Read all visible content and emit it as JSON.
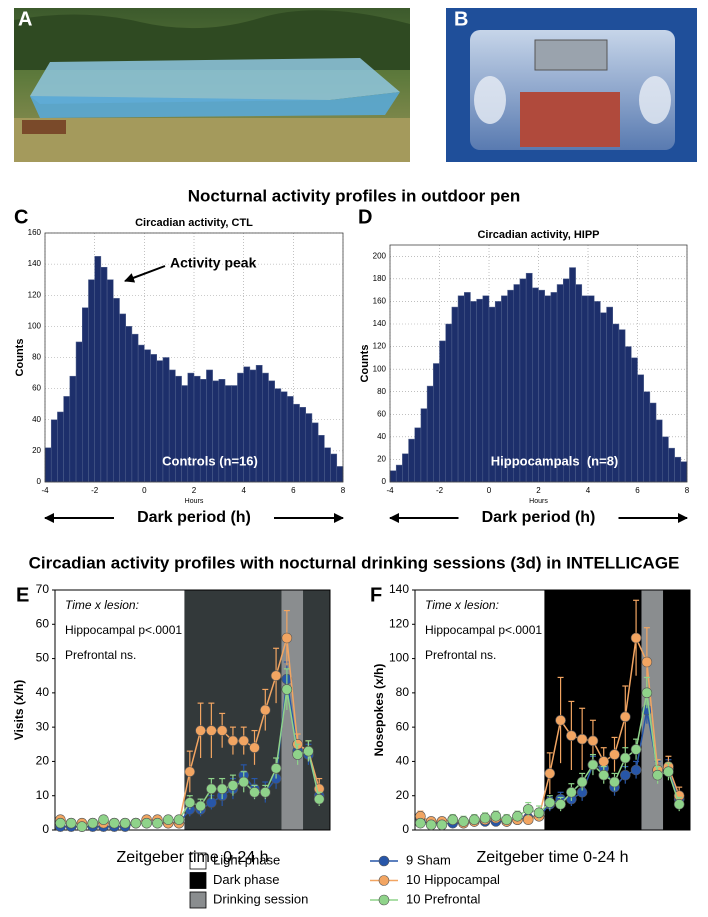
{
  "panel_labels": [
    "A",
    "B",
    "C",
    "D",
    "E",
    "F"
  ],
  "section_titles": [
    "Nocturnal activity profiles in outdoor pen",
    "Circadian activity profiles with nocturnal drinking sessions (3d) in INTELLICAGE"
  ],
  "phase_legend": [
    {
      "label": "Light phase",
      "color": "#ffffff"
    },
    {
      "label": "Dark phase",
      "color": "#000000"
    },
    {
      "label": "Drinking session",
      "color": "#8a8d8f"
    }
  ],
  "chart_data": [
    {
      "type": "histogram",
      "title": "Circadian activity, CTL",
      "x_label": "Hours",
      "y_label": "Counts",
      "x_caption": "Dark period (h)",
      "annotations": [
        "Activity peak",
        "Controls (n=16)"
      ],
      "color": "#1d2f6b",
      "grid": true,
      "xlim": [
        -4,
        8
      ],
      "xticks": [
        -4,
        -2,
        0,
        2,
        4,
        6,
        8
      ],
      "ylim": [
        0,
        160
      ],
      "yticks": [
        0,
        20,
        40,
        60,
        80,
        100,
        120,
        140,
        160
      ],
      "bins": [
        -4,
        -3.75,
        -3.5,
        -3.25,
        -3,
        -2.75,
        -2.5,
        -2.25,
        -2,
        -1.75,
        -1.5,
        -1.25,
        -1,
        -0.75,
        -0.5,
        -0.25,
        0,
        0.25,
        0.5,
        0.75,
        1,
        1.25,
        1.5,
        1.75,
        2,
        2.25,
        2.5,
        2.75,
        3,
        3.25,
        3.5,
        3.75,
        4,
        4.25,
        4.5,
        4.75,
        5,
        5.25,
        5.5,
        5.75,
        6,
        6.25,
        6.5,
        6.75,
        7,
        7.25,
        7.5,
        7.75,
        8
      ],
      "values": [
        22,
        40,
        45,
        55,
        68,
        90,
        112,
        130,
        145,
        138,
        130,
        118,
        108,
        100,
        95,
        88,
        85,
        82,
        78,
        80,
        72,
        68,
        62,
        70,
        68,
        66,
        72,
        65,
        66,
        62,
        62,
        70,
        74,
        72,
        75,
        70,
        65,
        60,
        58,
        55,
        50,
        48,
        44,
        38,
        30,
        22,
        18,
        10
      ]
    },
    {
      "type": "histogram",
      "title": "Circadian activity, HIPP",
      "x_label": "Hours",
      "y_label": "Counts",
      "x_caption": "Dark period (h)",
      "annotations": [
        "Hippocampals  (n=8)"
      ],
      "color": "#1d2f6b",
      "grid": true,
      "xlim": [
        -4,
        8
      ],
      "xticks": [
        -4,
        -2,
        0,
        2,
        4,
        6,
        8
      ],
      "ylim": [
        0,
        210
      ],
      "yticks": [
        0,
        20,
        40,
        60,
        80,
        100,
        120,
        140,
        160,
        180,
        200
      ],
      "bins": [
        -4,
        -3.75,
        -3.5,
        -3.25,
        -3,
        -2.75,
        -2.5,
        -2.25,
        -2,
        -1.75,
        -1.5,
        -1.25,
        -1,
        -0.75,
        -0.5,
        -0.25,
        0,
        0.25,
        0.5,
        0.75,
        1,
        1.25,
        1.5,
        1.75,
        2,
        2.25,
        2.5,
        2.75,
        3,
        3.25,
        3.5,
        3.75,
        4,
        4.25,
        4.5,
        4.75,
        5,
        5.25,
        5.5,
        5.75,
        6,
        6.25,
        6.5,
        6.75,
        7,
        7.25,
        7.5,
        7.75,
        8
      ],
      "values": [
        10,
        15,
        25,
        38,
        48,
        65,
        85,
        105,
        125,
        140,
        155,
        165,
        168,
        160,
        162,
        165,
        155,
        160,
        165,
        170,
        175,
        180,
        185,
        172,
        170,
        165,
        168,
        175,
        180,
        190,
        175,
        165,
        165,
        160,
        150,
        155,
        140,
        135,
        120,
        110,
        95,
        80,
        70,
        55,
        40,
        30,
        22,
        18
      ]
    },
    {
      "type": "line",
      "y_label": "Visits (x/h)",
      "x_label": "Zeitgeber time 0-24 h",
      "annotations": [
        "Time x lesion:",
        "Hippocampal p<.0001",
        "Prefrontal ns."
      ],
      "x": [
        0,
        1,
        2,
        3,
        4,
        5,
        6,
        7,
        8,
        9,
        10,
        11,
        12,
        13,
        14,
        15,
        16,
        17,
        18,
        19,
        20,
        21,
        22,
        23,
        24
      ],
      "xlim": [
        -0.5,
        25
      ],
      "ylim": [
        0,
        70
      ],
      "yticks": [
        0,
        10,
        20,
        30,
        40,
        50,
        60,
        70
      ],
      "regions": [
        {
          "start": 11.5,
          "end": 25,
          "color": "#33393a"
        },
        {
          "start": 20.5,
          "end": 22.5,
          "color": "#8a8d8f"
        }
      ],
      "series": [
        {
          "name": "9 Sham",
          "color": "#2756a8",
          "values": [
            1,
            1,
            1,
            1,
            1,
            1,
            1,
            2,
            2,
            2,
            2,
            2,
            6,
            6,
            8,
            10,
            12,
            16,
            12,
            11,
            15,
            44,
            23,
            22,
            10
          ],
          "errors": [
            1,
            1,
            1,
            1,
            1,
            1,
            1,
            1,
            1,
            1,
            1,
            1,
            2,
            2,
            2,
            3,
            3,
            3,
            3,
            3,
            3,
            5,
            3,
            3,
            2
          ]
        },
        {
          "name": "10 Hippocampal",
          "color": "#f2a562",
          "values": [
            3,
            2,
            2,
            2,
            2,
            2,
            2,
            2,
            3,
            3,
            2,
            2,
            17,
            29,
            29,
            29,
            26,
            26,
            24,
            35,
            45,
            56,
            25,
            23,
            12
          ],
          "errors": [
            1,
            1,
            1,
            1,
            1,
            1,
            1,
            1,
            1,
            1,
            1,
            1,
            6,
            8,
            8,
            5,
            4,
            4,
            5,
            6,
            8,
            8,
            3,
            3,
            3
          ]
        },
        {
          "name": "10 Prefrontal",
          "color": "#8fd38a",
          "values": [
            2,
            2,
            1,
            2,
            3,
            2,
            2,
            2,
            2,
            2,
            3,
            3,
            8,
            7,
            12,
            12,
            13,
            14,
            11,
            11,
            18,
            41,
            22,
            23,
            9
          ],
          "errors": [
            1,
            1,
            1,
            1,
            1,
            1,
            1,
            1,
            1,
            1,
            1,
            1,
            2,
            2,
            3,
            3,
            3,
            3,
            2,
            2,
            3,
            6,
            3,
            3,
            2
          ]
        }
      ]
    },
    {
      "type": "line",
      "y_label": "Nosepokes (x/h)",
      "x_label": "Zeitgeber time 0-24 h",
      "annotations": [
        "Time x lesion:",
        "Hippocampal p<.0001",
        "Prefrontal ns."
      ],
      "x": [
        0,
        1,
        2,
        3,
        4,
        5,
        6,
        7,
        8,
        9,
        10,
        11,
        12,
        13,
        14,
        15,
        16,
        17,
        18,
        19,
        20,
        21,
        22,
        23,
        24
      ],
      "xlim": [
        -0.5,
        25
      ],
      "ylim": [
        0,
        140
      ],
      "yticks": [
        0,
        20,
        40,
        60,
        80,
        100,
        120,
        140
      ],
      "regions": [
        {
          "start": 11.5,
          "end": 25,
          "color": "#000000"
        },
        {
          "start": 20.5,
          "end": 22.5,
          "color": "#8a8d8f"
        }
      ],
      "series": [
        {
          "name": "9 Sham",
          "color": "#2756a8",
          "values": [
            5,
            4,
            4,
            4,
            4,
            5,
            5,
            5,
            5,
            6,
            7,
            8,
            15,
            18,
            18,
            22,
            38,
            36,
            25,
            32,
            35,
            70,
            35,
            36,
            18
          ],
          "errors": [
            2,
            2,
            2,
            2,
            2,
            2,
            2,
            2,
            2,
            2,
            2,
            2,
            4,
            4,
            4,
            5,
            5,
            5,
            5,
            5,
            5,
            8,
            5,
            5,
            4
          ]
        },
        {
          "name": "10 Hippocampal",
          "color": "#f2a562",
          "values": [
            8,
            5,
            5,
            6,
            4,
            5,
            6,
            7,
            5,
            6,
            6,
            8,
            33,
            64,
            55,
            53,
            52,
            40,
            44,
            66,
            112,
            98,
            35,
            37,
            20
          ],
          "errors": [
            3,
            2,
            2,
            2,
            2,
            2,
            2,
            2,
            2,
            2,
            2,
            3,
            12,
            25,
            20,
            18,
            12,
            8,
            10,
            18,
            22,
            20,
            6,
            6,
            5
          ]
        },
        {
          "name": "10 Prefrontal",
          "color": "#8fd38a",
          "values": [
            4,
            3,
            3,
            6,
            5,
            6,
            7,
            8,
            6,
            8,
            12,
            10,
            16,
            15,
            22,
            28,
            38,
            32,
            28,
            42,
            47,
            80,
            32,
            34,
            15
          ],
          "errors": [
            2,
            2,
            2,
            3,
            3,
            3,
            3,
            3,
            3,
            3,
            4,
            4,
            4,
            4,
            5,
            5,
            6,
            5,
            5,
            6,
            6,
            9,
            5,
            5,
            4
          ]
        }
      ]
    }
  ]
}
